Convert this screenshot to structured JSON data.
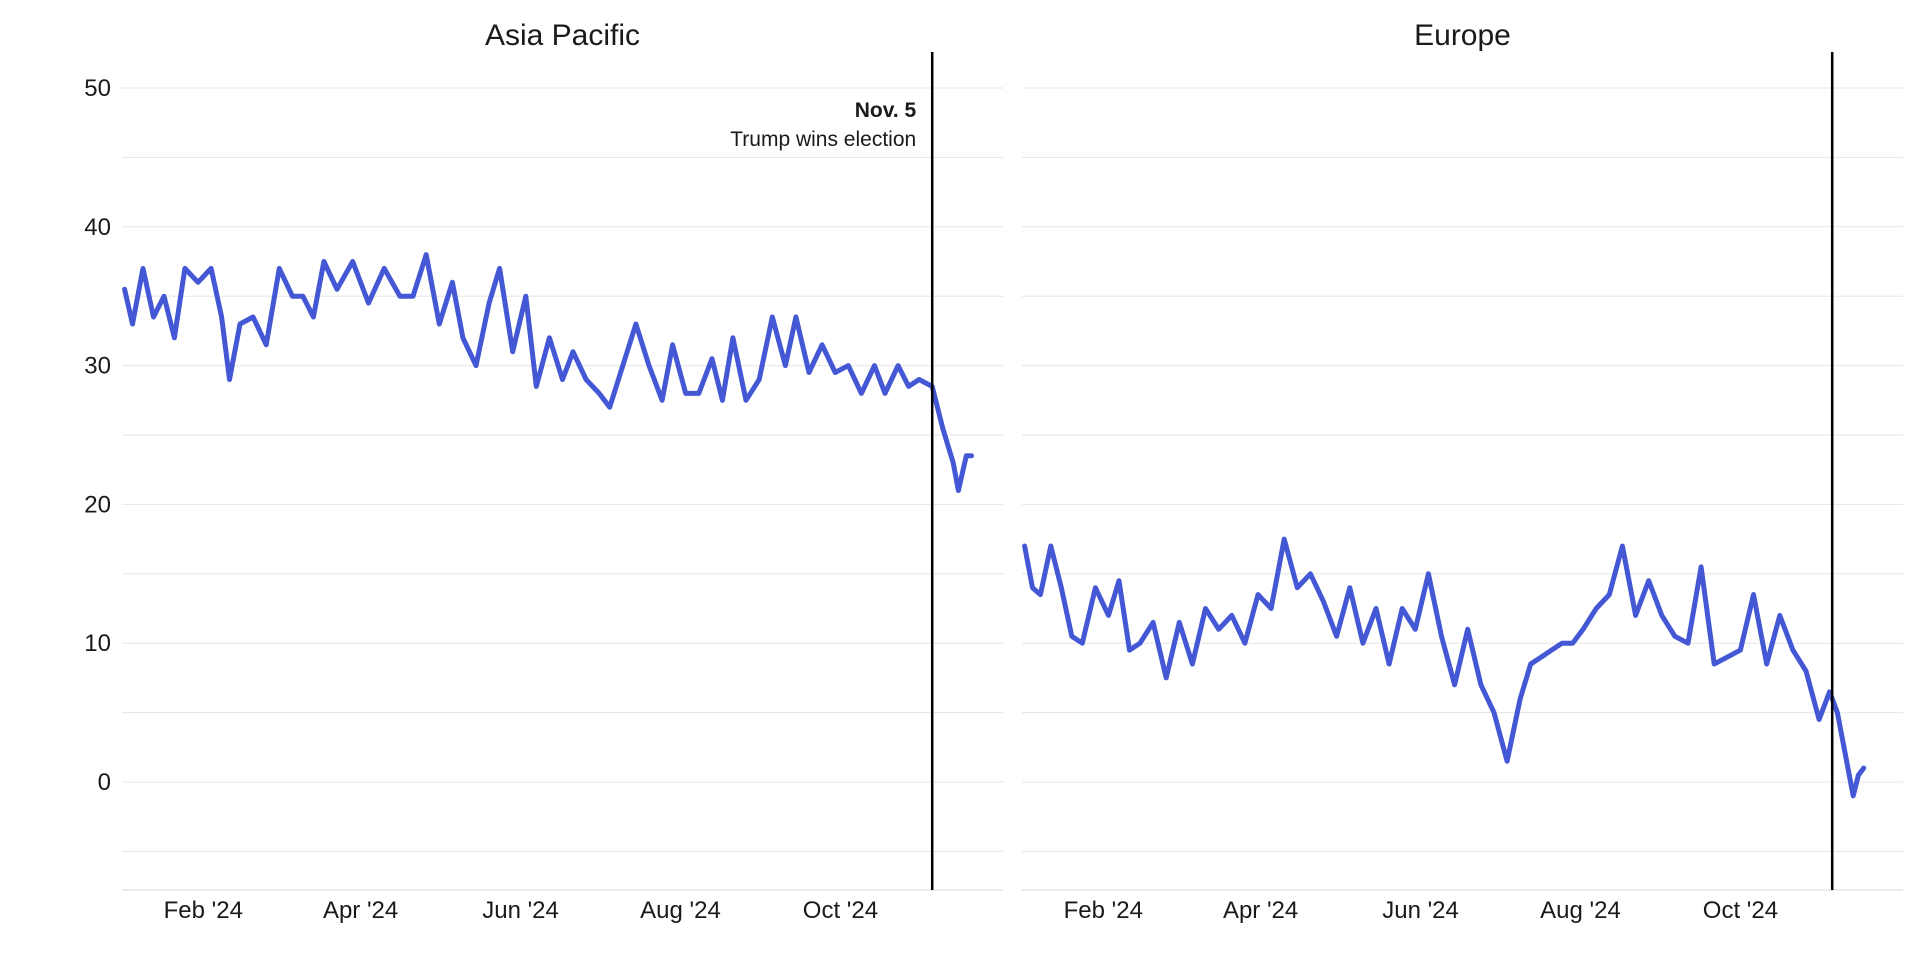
{
  "chart_data": [
    {
      "type": "line",
      "title": "Asia Pacific",
      "x_type": "date",
      "x_ticks": [
        {
          "date": "2024-02-01",
          "label": "Feb '24"
        },
        {
          "date": "2024-04-01",
          "label": "Apr '24"
        },
        {
          "date": "2024-06-01",
          "label": "Jun '24"
        },
        {
          "date": "2024-08-01",
          "label": "Aug '24"
        },
        {
          "date": "2024-10-01",
          "label": "Oct '24"
        }
      ],
      "xlim": [
        "2024-01-01",
        "2024-12-02"
      ],
      "y_ticks": [
        0,
        10,
        20,
        30,
        40,
        50
      ],
      "ylim": [
        -8,
        52
      ],
      "grid": true,
      "series_color": "#4457d4",
      "series": [
        {
          "name": "",
          "x": [
            "2024-01-02",
            "2024-01-05",
            "2024-01-09",
            "2024-01-13",
            "2024-01-17",
            "2024-01-21",
            "2024-01-25",
            "2024-01-30",
            "2024-02-04",
            "2024-02-08",
            "2024-02-11",
            "2024-02-15",
            "2024-02-20",
            "2024-02-25",
            "2024-03-01",
            "2024-03-06",
            "2024-03-10",
            "2024-03-14",
            "2024-03-18",
            "2024-03-23",
            "2024-03-29",
            "2024-04-04",
            "2024-04-10",
            "2024-04-16",
            "2024-04-21",
            "2024-04-26",
            "2024-05-01",
            "2024-05-06",
            "2024-05-10",
            "2024-05-15",
            "2024-05-20",
            "2024-05-24",
            "2024-05-29",
            "2024-06-03",
            "2024-06-07",
            "2024-06-12",
            "2024-06-17",
            "2024-06-21",
            "2024-06-26",
            "2024-07-01",
            "2024-07-05",
            "2024-07-10",
            "2024-07-15",
            "2024-07-20",
            "2024-07-25",
            "2024-07-29",
            "2024-08-03",
            "2024-08-08",
            "2024-08-13",
            "2024-08-17",
            "2024-08-21",
            "2024-08-26",
            "2024-08-31",
            "2024-09-05",
            "2024-09-10",
            "2024-09-14",
            "2024-09-19",
            "2024-09-24",
            "2024-09-29",
            "2024-10-04",
            "2024-10-09",
            "2024-10-14",
            "2024-10-18",
            "2024-10-23",
            "2024-10-27",
            "2024-10-31",
            "2024-11-05",
            "2024-11-09",
            "2024-11-13",
            "2024-11-15",
            "2024-11-18",
            "2024-11-20"
          ],
          "y": [
            35.5,
            33.0,
            37.0,
            33.5,
            35.0,
            32.0,
            37.0,
            36.0,
            37.0,
            33.5,
            29.0,
            33.0,
            33.5,
            31.5,
            37.0,
            35.0,
            35.0,
            33.5,
            37.5,
            35.5,
            37.5,
            34.5,
            37.0,
            35.0,
            35.0,
            38.0,
            33.0,
            36.0,
            32.0,
            30.0,
            34.5,
            37.0,
            31.0,
            35.0,
            28.5,
            32.0,
            29.0,
            31.0,
            29.0,
            28.0,
            27.0,
            30.0,
            33.0,
            30.0,
            27.5,
            31.5,
            28.0,
            28.0,
            30.5,
            27.5,
            32.0,
            27.5,
            29.0,
            33.5,
            30.0,
            33.5,
            29.5,
            31.5,
            29.5,
            30.0,
            28.0,
            30.0,
            28.0,
            30.0,
            28.5,
            29.0,
            28.5,
            25.5,
            23.0,
            21.0,
            23.5,
            23.5
          ]
        }
      ],
      "event": {
        "date": "2024-11-05",
        "title": "Nov. 5",
        "text": "Trump wins election"
      }
    },
    {
      "type": "line",
      "title": "Europe",
      "x_type": "date",
      "x_ticks": [
        {
          "date": "2024-02-01",
          "label": "Feb '24"
        },
        {
          "date": "2024-04-01",
          "label": "Apr '24"
        },
        {
          "date": "2024-06-01",
          "label": "Jun '24"
        },
        {
          "date": "2024-08-01",
          "label": "Aug '24"
        },
        {
          "date": "2024-10-01",
          "label": "Oct '24"
        }
      ],
      "xlim": [
        "2024-01-01",
        "2024-12-02"
      ],
      "y_ticks": [
        0,
        10,
        20,
        30,
        40,
        50
      ],
      "ylim": [
        -8,
        52
      ],
      "grid": true,
      "series_color": "#4457d4",
      "series": [
        {
          "name": "",
          "x": [
            "2024-01-02",
            "2024-01-05",
            "2024-01-08",
            "2024-01-12",
            "2024-01-16",
            "2024-01-20",
            "2024-01-24",
            "2024-01-29",
            "2024-02-03",
            "2024-02-07",
            "2024-02-11",
            "2024-02-15",
            "2024-02-20",
            "2024-02-25",
            "2024-03-01",
            "2024-03-06",
            "2024-03-11",
            "2024-03-16",
            "2024-03-21",
            "2024-03-26",
            "2024-03-31",
            "2024-04-05",
            "2024-04-10",
            "2024-04-15",
            "2024-04-20",
            "2024-04-25",
            "2024-04-30",
            "2024-05-05",
            "2024-05-10",
            "2024-05-15",
            "2024-05-20",
            "2024-05-25",
            "2024-05-30",
            "2024-06-04",
            "2024-06-09",
            "2024-06-14",
            "2024-06-19",
            "2024-06-24",
            "2024-06-29",
            "2024-07-04",
            "2024-07-09",
            "2024-07-13",
            "2024-07-17",
            "2024-07-21",
            "2024-07-25",
            "2024-07-29",
            "2024-08-02",
            "2024-08-07",
            "2024-08-12",
            "2024-08-17",
            "2024-08-22",
            "2024-08-27",
            "2024-09-01",
            "2024-09-06",
            "2024-09-11",
            "2024-09-16",
            "2024-09-21",
            "2024-09-26",
            "2024-10-01",
            "2024-10-06",
            "2024-10-11",
            "2024-10-16",
            "2024-10-21",
            "2024-10-26",
            "2024-10-31",
            "2024-11-04",
            "2024-11-07",
            "2024-11-10",
            "2024-11-13",
            "2024-11-15",
            "2024-11-17"
          ],
          "y": [
            17.0,
            14.0,
            13.5,
            17.0,
            14.0,
            10.5,
            10.0,
            14.0,
            12.0,
            14.5,
            9.5,
            10.0,
            11.5,
            7.5,
            11.5,
            8.5,
            12.5,
            11.0,
            12.0,
            10.0,
            13.5,
            12.5,
            17.5,
            14.0,
            15.0,
            13.0,
            10.5,
            14.0,
            10.0,
            12.5,
            8.5,
            12.5,
            11.0,
            15.0,
            10.5,
            7.0,
            11.0,
            7.0,
            5.0,
            1.5,
            6.0,
            8.5,
            9.0,
            9.5,
            10.0,
            10.0,
            11.0,
            12.5,
            13.5,
            17.0,
            12.0,
            14.5,
            12.0,
            10.5,
            10.0,
            15.5,
            8.5,
            9.0,
            9.5,
            13.5,
            8.5,
            12.0,
            9.5,
            8.0,
            4.5,
            6.5,
            5.0,
            2.0,
            -1.0,
            0.5,
            1.0
          ]
        }
      ],
      "event": {
        "date": "2024-11-05"
      }
    }
  ]
}
